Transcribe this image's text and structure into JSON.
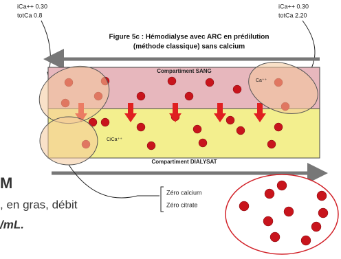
{
  "readings": {
    "left": {
      "ionized": "iCa++ 0.30",
      "total": "totCa 0.8"
    },
    "right": {
      "ionized": "iCa++ 0.30",
      "total": "totCa 2.20"
    }
  },
  "figure_title": [
    "Figure 5c : Hémodialyse avec ARC en prédilution",
    "(méthode classique) sans calcium"
  ],
  "compartments": {
    "blood": "Compartiment SANG",
    "dialysate": "Compartiment DIALYSAT"
  },
  "ion_labels": {
    "blood": "Ca⁺⁺",
    "dialysate": "CiCa⁺⁺"
  },
  "annotation": [
    "Zéro calcium",
    "Zéro citrate"
  ],
  "background_text": [
    "M",
    ", en gras, débit",
    "/mL."
  ]
}
